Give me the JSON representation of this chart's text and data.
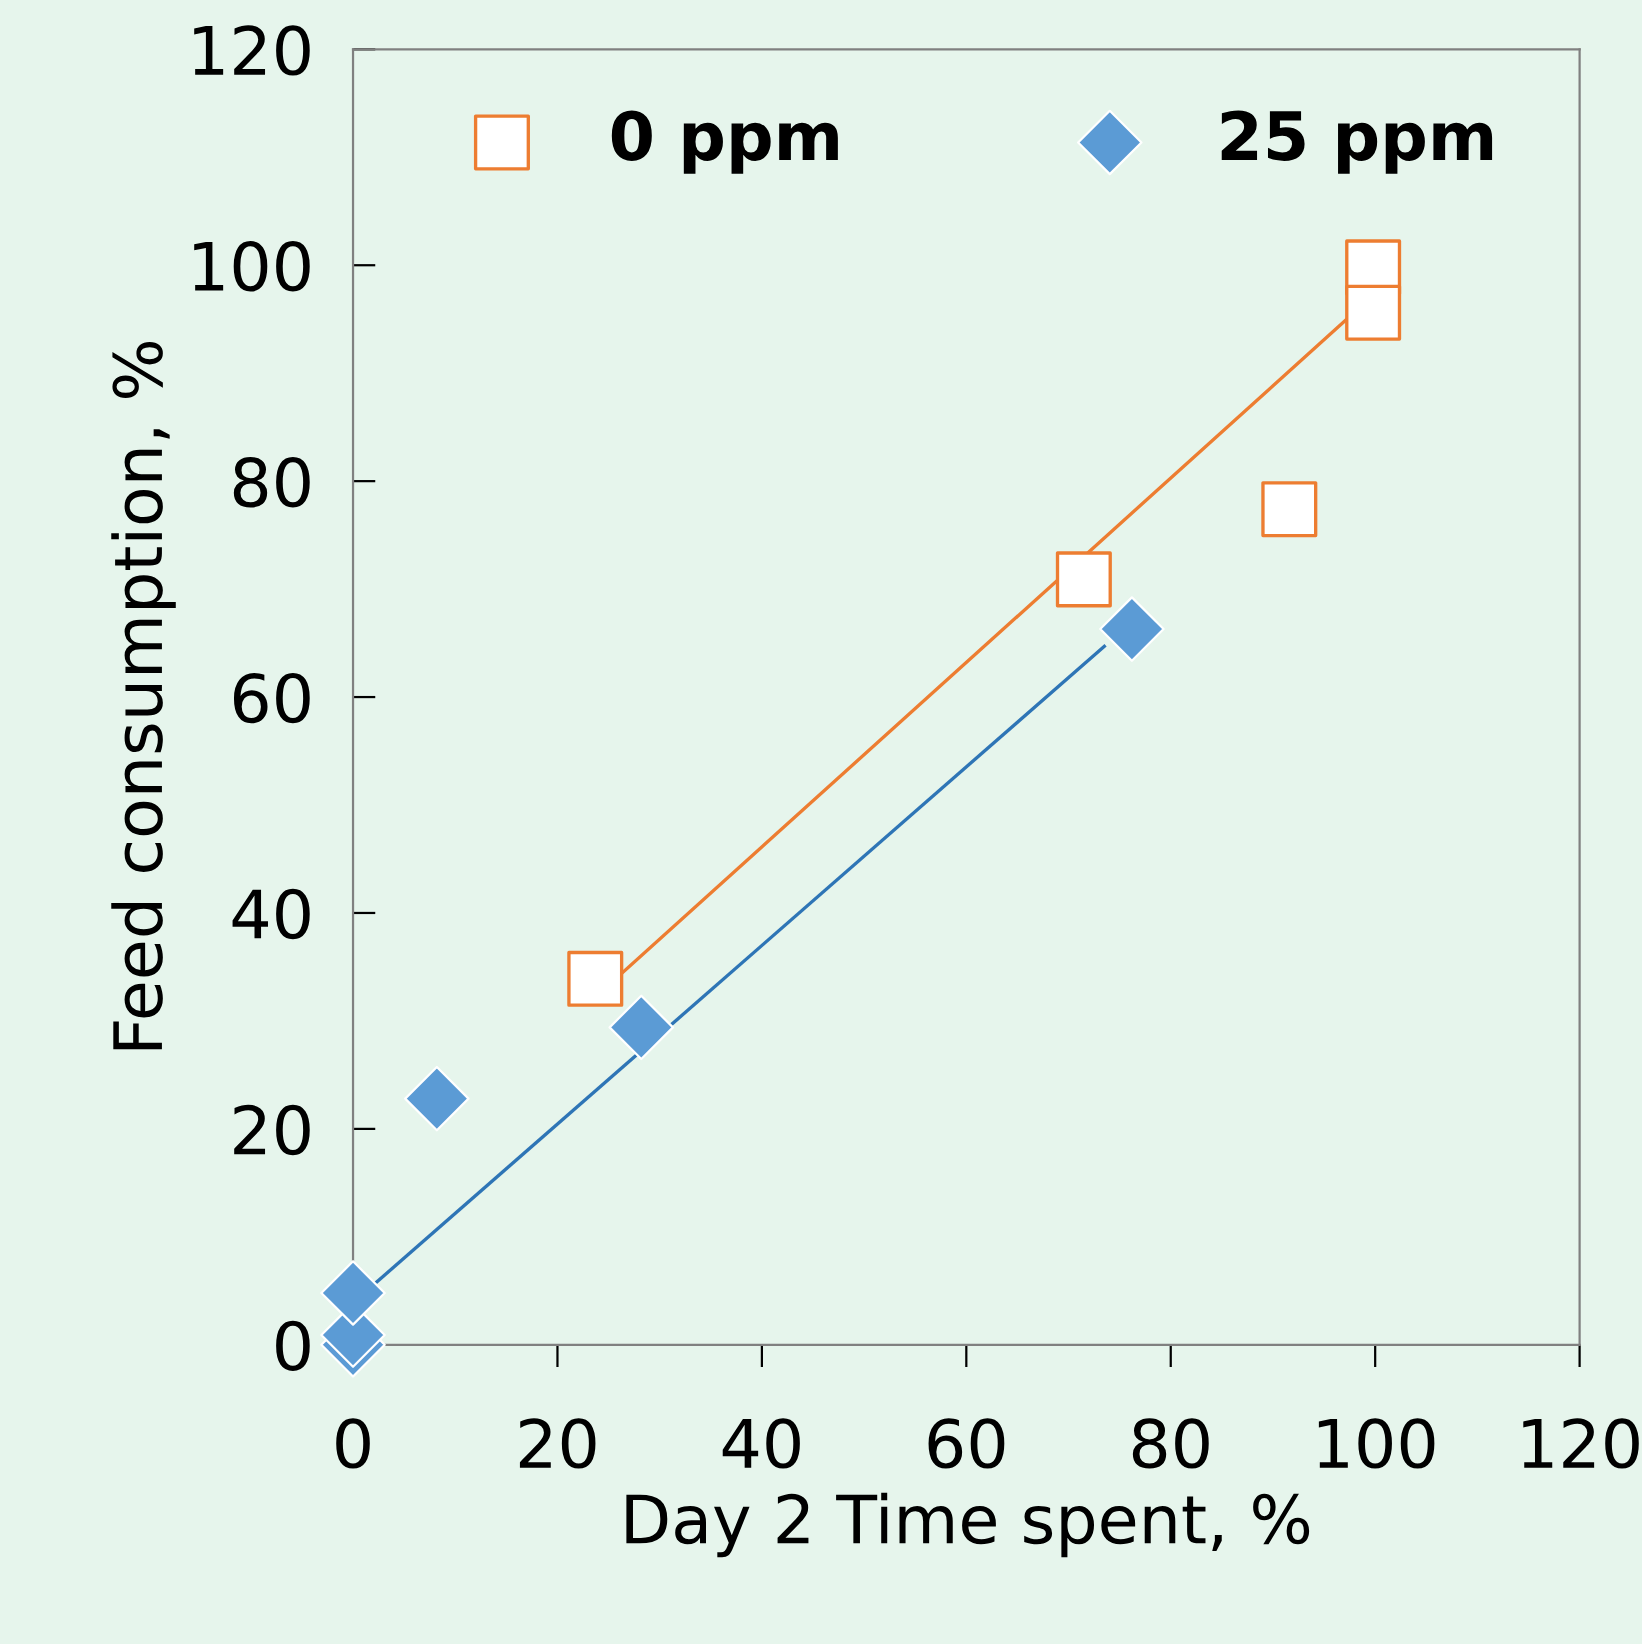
{
  "chart_data": {
    "type": "scatter",
    "xlabel": "Day 2 Time spent, %",
    "ylabel": "Feed consumption, %",
    "series": [
      {
        "name": "0 ppm",
        "color": "#ed7d31",
        "marker": "square",
        "x": [
          23.7,
          71.5,
          91.6,
          99.8,
          99.8
        ],
        "values": [
          33.9,
          70.9,
          77.4,
          99.8,
          95.6
        ]
      },
      {
        "name": "25 ppm",
        "color": "#5b9bd5",
        "marker": "diamond",
        "x": [
          0,
          0,
          0,
          8.2,
          28.2,
          76.2
        ],
        "values": [
          0,
          0.9,
          4.8,
          22.8,
          29.4,
          66.3
        ]
      },
      {
        "type": "line",
        "color": "#ed7d31",
        "x": [
          23.7,
          99.8
        ],
        "values": [
          32.2,
          97.2
        ]
      },
      {
        "type": "line",
        "color": "#2e75b6",
        "x": [
          0,
          73.5
        ],
        "values": [
          3.9,
          64.7
        ]
      }
    ],
    "xlim": [
      0,
      120
    ],
    "ylim": [
      0,
      120
    ],
    "xticks": [
      0,
      20,
      40,
      60,
      80,
      100,
      120
    ],
    "yticks": [
      0,
      20,
      40,
      60,
      80,
      100,
      120
    ],
    "legend": "top",
    "grid": false
  }
}
